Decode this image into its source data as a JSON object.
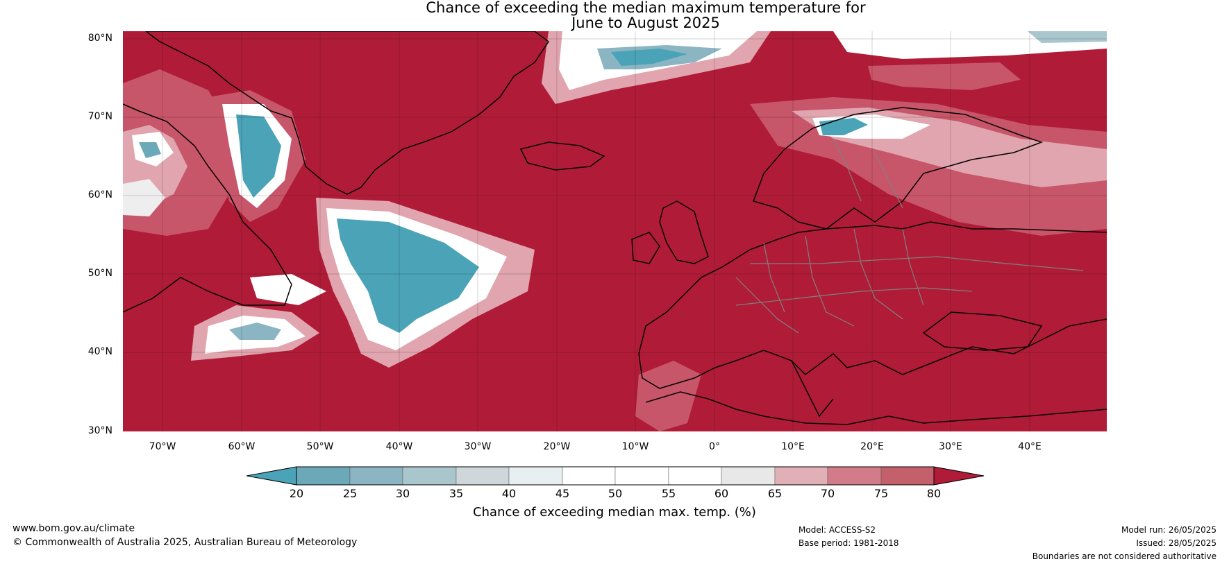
{
  "title": {
    "line1": "Chance of exceeding the median maximum temperature for",
    "line2": "June to August 2025"
  },
  "map": {
    "lat_labels": [
      "80°N",
      "70°N",
      "60°N",
      "50°N",
      "40°N",
      "30°N"
    ],
    "lon_labels": [
      "70°W",
      "60°W",
      "50°W",
      "40°W",
      "30°W",
      "20°W",
      "10°W",
      "0°",
      "10°E",
      "20°E",
      "30°E",
      "40°E"
    ],
    "colors": {
      "ocean_high": "#b01c38",
      "mid_red": "#c8566a",
      "pink": "#e0a5ae",
      "light": "#eeeeee",
      "white": "#ffffff",
      "teal": "#4aa3b7",
      "teal_dark": "#3a9ab0"
    }
  },
  "colorbar": {
    "ticks": [
      "20",
      "25",
      "30",
      "35",
      "40",
      "45",
      "50",
      "55",
      "60",
      "65",
      "70",
      "75",
      "80"
    ],
    "colors": [
      "#4aa3b7",
      "#6ba9b9",
      "#8bb5c2",
      "#a9c6cd",
      "#ced8da",
      "#e8eff1",
      "#ffffff",
      "#ffffff",
      "#e8e8e8",
      "#e0b0b6",
      "#d17c88",
      "#c4606b",
      "#bb3e4e",
      "#b01c38"
    ],
    "label": "Chance of exceeding median max. temp. (%)"
  },
  "footer": {
    "website": "www.bom.gov.au/climate",
    "copyright": "© Commonwealth of Australia 2025, Australian Bureau of Meteorology",
    "model": "Model: ACCESS-S2",
    "base_period": "Base period: 1981-2018",
    "model_run": "Model run: 26/05/2025",
    "issued": "Issued: 28/05/2025",
    "disclaimer": "Boundaries are not considered authoritative"
  }
}
